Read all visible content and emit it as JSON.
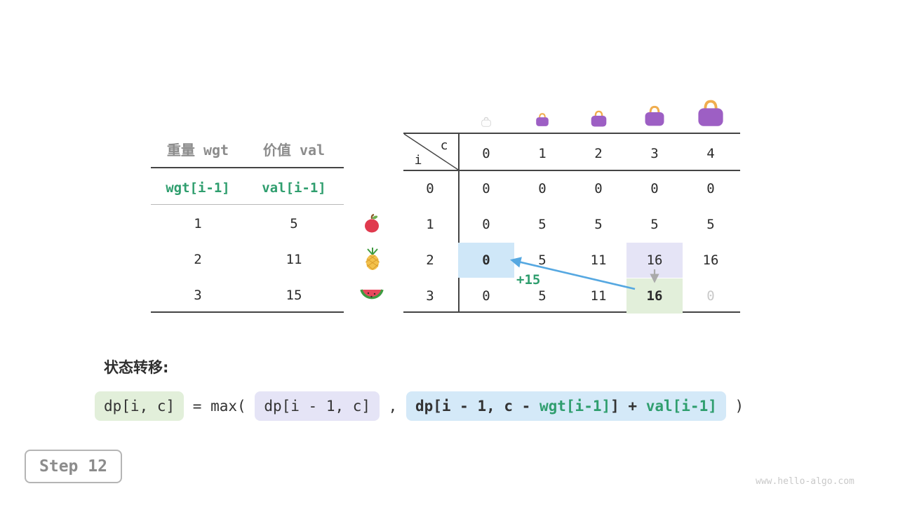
{
  "colors": {
    "accent_green": "#2f9e6e",
    "arrow_blue": "#56a8e1",
    "arrow_gray": "#aaaaaa",
    "highlight_blue": "#cfe7f8",
    "highlight_lavender": "#e5e4f6",
    "highlight_green": "#e2efda",
    "bag_purple": "#9d5fc4",
    "bag_handle_orange": "#f0ad4e"
  },
  "items_table": {
    "col_headers": [
      "重量 wgt",
      "价值 val"
    ],
    "var_row": {
      "wgt": "wgt[i-1]",
      "val": "val[i-1]"
    },
    "rows": [
      {
        "icon": "apple-icon",
        "wgt": "1",
        "val": "5"
      },
      {
        "icon": "pineapple-icon",
        "wgt": "2",
        "val": "11"
      },
      {
        "icon": "watermelon-icon",
        "wgt": "3",
        "val": "15"
      }
    ]
  },
  "dp_table": {
    "corner": {
      "col_var": "c",
      "row_var": "i"
    },
    "col_headers": [
      "0",
      "1",
      "2",
      "3",
      "4"
    ],
    "row_headers": [
      "0",
      "1",
      "2",
      "3"
    ],
    "rows": [
      [
        "0",
        "0",
        "0",
        "0",
        "0"
      ],
      [
        "0",
        "5",
        "5",
        "5",
        "5"
      ],
      [
        "0",
        "5",
        "11",
        "16",
        "16"
      ],
      [
        "0",
        "5",
        "11",
        "16",
        "0"
      ]
    ],
    "highlights": [
      {
        "r": 2,
        "c": 0,
        "type": "hl-blue",
        "bold": true
      },
      {
        "r": 2,
        "c": 3,
        "type": "hl-lavender",
        "bold": false
      },
      {
        "r": 3,
        "c": 3,
        "type": "hl-green",
        "bold": true
      },
      {
        "r": 3,
        "c": 4,
        "type": "faded",
        "bold": false
      }
    ],
    "arrow_label": "+15",
    "bag_icons": [
      "bag-empty-icon",
      "bag-small-icon",
      "bag-medium-icon",
      "bag-large-icon",
      "bag-xlarge-icon"
    ]
  },
  "transition": {
    "label": "状态转移:",
    "lhs": "dp[i, c]",
    "eq": " = max( ",
    "option1": "dp[i - 1, c]",
    "comma": " , ",
    "option2_prefix": "dp[i - 1, c - ",
    "option2_wgt": "wgt[i-1]",
    "option2_mid": "] + ",
    "option2_val": "val[i-1]",
    "close": " )"
  },
  "footer": {
    "step_label": "Step 12",
    "watermark": "www.hello-algo.com"
  }
}
